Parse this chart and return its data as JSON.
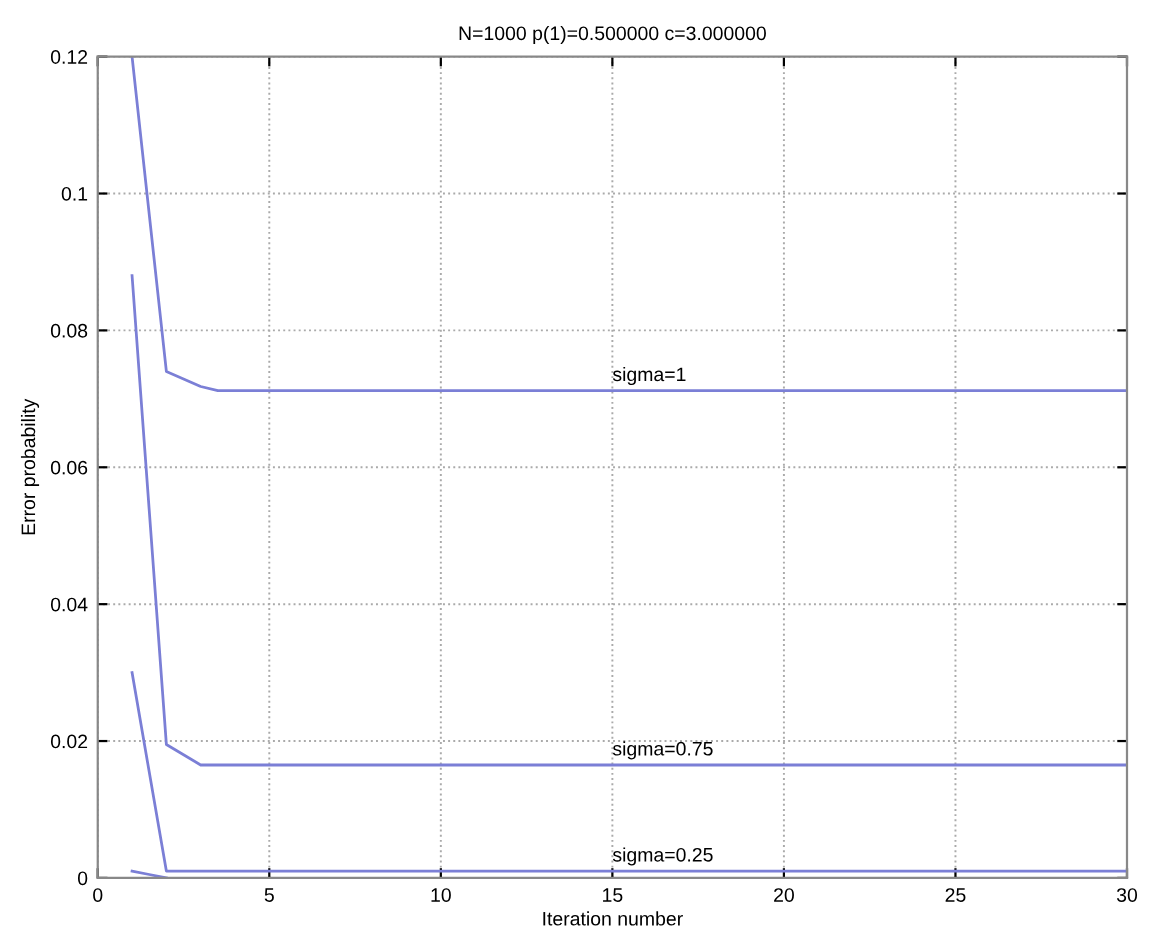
{
  "chart_data": {
    "type": "line",
    "title": "N=1000 p(1)=0.500000 c=3.000000",
    "xlabel": "Iteration number",
    "ylabel": "Error probability",
    "series": [
      {
        "name": "sigma=1",
        "color": "#7b7fd6",
        "x": [
          1,
          2,
          3,
          3.5,
          30
        ],
        "values": [
          0.12,
          0.074,
          0.0718,
          0.0712,
          0.0712
        ]
      },
      {
        "name": "sigma=0.75",
        "color": "#7b7fd6",
        "x": [
          1,
          2,
          3,
          30
        ],
        "values": [
          0.088,
          0.0195,
          0.0165,
          0.0165
        ]
      },
      {
        "name": "sigma=0.25",
        "color": "#7b7fd6",
        "x": [
          1,
          2,
          30
        ],
        "values": [
          0.03,
          0.001,
          0.001
        ]
      },
      {
        "color": "#7b7fd6",
        "x": [
          1,
          1.5,
          2
        ],
        "values": [
          0.001,
          0.0005,
          0
        ]
      }
    ],
    "xlim": [
      0,
      30
    ],
    "ylim": [
      0,
      0.12
    ],
    "xticks": [
      0,
      5,
      10,
      15,
      20,
      25,
      30
    ],
    "yticks": [
      0,
      0.02,
      0.04,
      0.06,
      0.08,
      0.1,
      0.12
    ],
    "grid": true
  }
}
